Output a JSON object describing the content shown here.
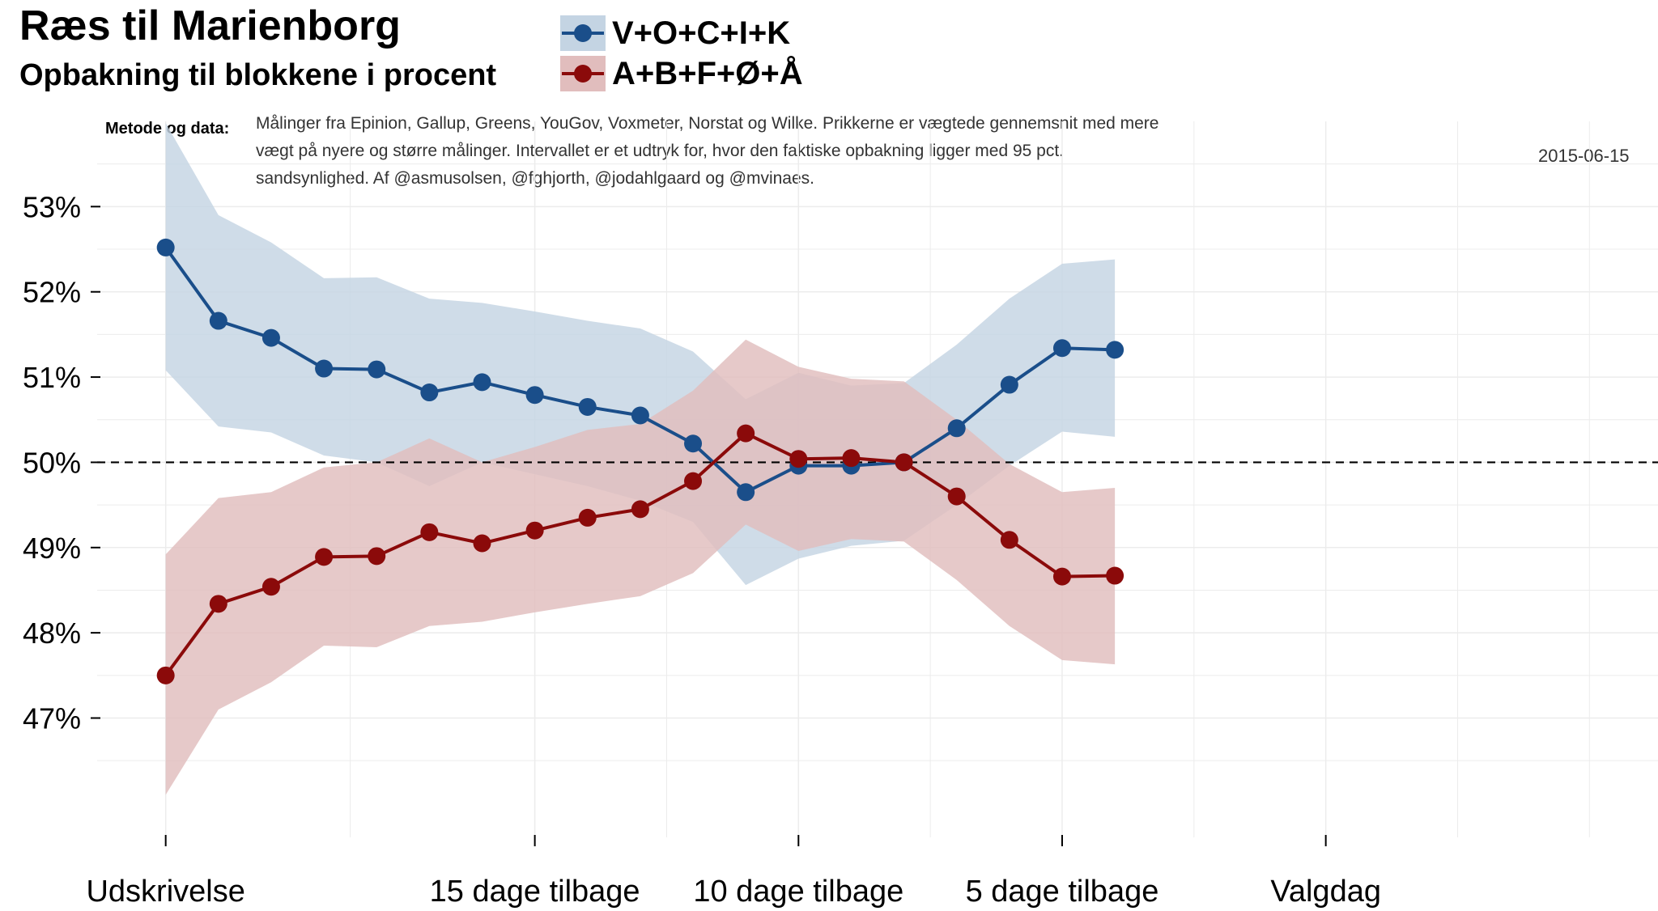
{
  "header": {
    "title": "Ræs til Marienborg",
    "subtitle": "Opbakning til blokkene i procent"
  },
  "note": {
    "label": "Metode og data:",
    "lines": [
      "Målinger fra Epinion, Gallup, Greens, YouGov, Voxmeter, Norstat og Wilke. Prikkerne er vægtede gennemsnit med mere",
      "vægt på nyere og større målinger. Intervallet er et udtryk for, hvor den faktiske opbakning ligger med 95 pct.",
      " sandsynlighed. Af @asmusolsen, @fghjorth, @jodahlgaard og @mvinaes."
    ]
  },
  "date": "2015-06-15",
  "colors": {
    "blue": "#1a4e8a",
    "blue_band": "#c4d4e3",
    "red": "#8b0a0a",
    "red_band": "#e1bdbd",
    "overlap": "#a892a4",
    "grid": "#ececec"
  },
  "chart_data": {
    "type": "line",
    "x": [
      0,
      1,
      2,
      3,
      4,
      5,
      6,
      7,
      8,
      9,
      10,
      11,
      12,
      13,
      14,
      15,
      16,
      17,
      18
    ],
    "x_ticks": [
      {
        "x": 0,
        "label": "Udskrivelse"
      },
      {
        "x": 7,
        "label": "15 dage tilbage"
      },
      {
        "x": 12,
        "label": "10 dage tilbage"
      },
      {
        "x": 17,
        "label": "5 dage tilbage"
      },
      {
        "x": 22,
        "label": "Valgdag"
      }
    ],
    "xlim": [
      -1.3,
      28.3
    ],
    "ylim": [
      45.6,
      54.0
    ],
    "y_ticks": [
      47,
      48,
      49,
      50,
      51,
      52,
      53
    ],
    "y_tick_labels": [
      "47%",
      "48%",
      "49%",
      "50%",
      "51%",
      "52%",
      "53%"
    ],
    "reference_line": 50,
    "series": [
      {
        "name": "V+O+C+I+K",
        "values": [
          52.52,
          51.66,
          51.46,
          51.1,
          51.09,
          50.82,
          50.94,
          50.79,
          50.65,
          50.55,
          50.22,
          49.65,
          49.96,
          49.96,
          50.0,
          50.4,
          50.91,
          51.34,
          51.32
        ],
        "lower": [
          51.08,
          50.42,
          50.35,
          50.08,
          50.0,
          49.72,
          50.0,
          49.86,
          49.72,
          49.55,
          49.3,
          48.56,
          48.87,
          49.02,
          49.08,
          49.5,
          49.96,
          50.36,
          50.3
        ],
        "upper": [
          53.98,
          52.9,
          52.58,
          52.16,
          52.17,
          51.92,
          51.87,
          51.77,
          51.66,
          51.57,
          51.3,
          50.74,
          51.05,
          50.9,
          50.93,
          51.38,
          51.92,
          52.33,
          52.38
        ]
      },
      {
        "name": "A+B+F+Ø+Å",
        "values": [
          47.5,
          48.34,
          48.54,
          48.89,
          48.9,
          49.18,
          49.05,
          49.2,
          49.35,
          49.45,
          49.78,
          50.34,
          50.04,
          50.05,
          50.0,
          49.6,
          49.09,
          48.66,
          48.67
        ],
        "lower": [
          46.1,
          47.1,
          47.42,
          47.85,
          47.83,
          48.08,
          48.13,
          48.24,
          48.34,
          48.43,
          48.7,
          49.27,
          48.96,
          49.1,
          49.07,
          48.62,
          48.08,
          47.68,
          47.63
        ],
        "upper": [
          48.92,
          49.58,
          49.65,
          49.94,
          50.0,
          50.28,
          50.0,
          50.18,
          50.38,
          50.45,
          50.84,
          51.44,
          51.12,
          50.98,
          50.95,
          50.5,
          49.98,
          49.65,
          49.7
        ]
      }
    ]
  }
}
